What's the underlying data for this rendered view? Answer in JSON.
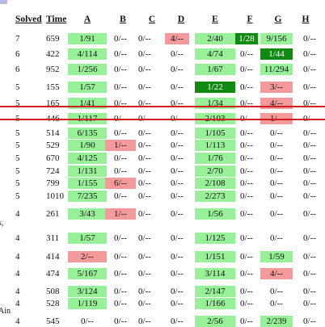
{
  "header": {
    "solved": "Solved",
    "time": "Time",
    "problems": [
      "A",
      "B",
      "C",
      "D",
      "E",
      "F",
      "G",
      "H"
    ]
  },
  "rows": [
    {
      "solved": "7",
      "time": "659",
      "cells": [
        "1/91",
        "0/--",
        "0/--",
        "4/--",
        "2/40",
        "1/28",
        "9/156",
        "0/--"
      ],
      "status": [
        "green",
        "plain",
        "plain",
        "red",
        "green",
        "dark",
        "green",
        "plain"
      ]
    },
    {
      "solved": "6",
      "time": "422",
      "cells": [
        "4/114",
        "0/--",
        "0/--",
        "0/--",
        "4/74",
        "0/--",
        "1/44",
        "0/--"
      ],
      "status": [
        "green",
        "plain",
        "plain",
        "plain",
        "green",
        "plain",
        "dark",
        "plain"
      ]
    },
    {
      "solved": "6",
      "time": "952",
      "cells": [
        "1/256",
        "0/--",
        "0/--",
        "0/--",
        "1/67",
        "0/--",
        "11/294",
        "0/--"
      ],
      "status": [
        "green",
        "plain",
        "plain",
        "plain",
        "green",
        "plain",
        "green",
        "plain"
      ]
    },
    {
      "solved": "5",
      "time": "155",
      "cells": [
        "1/57",
        "0/--",
        "0/--",
        "0/--",
        "1/22",
        "0/--",
        "3/--",
        "0/--"
      ],
      "status": [
        "green",
        "plain",
        "plain",
        "plain",
        "dark",
        "plain",
        "red",
        "plain"
      ]
    },
    {
      "solved": "5",
      "time": "165",
      "cells": [
        "1/41",
        "0/--",
        "0/--",
        "0/--",
        "1/34",
        "0/--",
        "4/--",
        "0/--"
      ],
      "status": [
        "green",
        "plain",
        "plain",
        "plain",
        "green",
        "plain",
        "red",
        "plain"
      ]
    },
    {
      "solved": "5",
      "time": "446",
      "cells": [
        "1/117",
        "0/--",
        "0/--",
        "0/--",
        "2/103",
        "0/--",
        "1/--",
        "0/--"
      ],
      "status": [
        "green",
        "plain",
        "plain",
        "plain",
        "green",
        "plain",
        "red",
        "plain"
      ]
    },
    {
      "solved": "5",
      "time": "514",
      "cells": [
        "6/135",
        "0/--",
        "0/--",
        "0/--",
        "1/105",
        "0/--",
        "0/--",
        "0/--"
      ],
      "status": [
        "green",
        "plain",
        "plain",
        "plain",
        "green",
        "plain",
        "plain",
        "plain"
      ]
    },
    {
      "solved": "5",
      "time": "529",
      "cells": [
        "1/90",
        "1/--",
        "0/--",
        "0/--",
        "1/113",
        "0/--",
        "0/--",
        "0/--"
      ],
      "status": [
        "green",
        "red",
        "plain",
        "plain",
        "green",
        "plain",
        "plain",
        "plain"
      ]
    },
    {
      "solved": "5",
      "time": "670",
      "cells": [
        "4/125",
        "0/--",
        "0/--",
        "0/--",
        "1/76",
        "0/--",
        "0/--",
        "0/--"
      ],
      "status": [
        "green",
        "plain",
        "plain",
        "plain",
        "green",
        "plain",
        "plain",
        "plain"
      ]
    },
    {
      "solved": "5",
      "time": "724",
      "cells": [
        "1/131",
        "0/--",
        "0/--",
        "0/--",
        "2/70",
        "0/--",
        "0/--",
        "0/--"
      ],
      "status": [
        "green",
        "plain",
        "plain",
        "plain",
        "green",
        "plain",
        "plain",
        "plain"
      ]
    },
    {
      "solved": "5",
      "time": "799",
      "cells": [
        "1/155",
        "6/--",
        "0/--",
        "0/--",
        "2/108",
        "0/--",
        "0/--",
        "0/--"
      ],
      "status": [
        "green",
        "red",
        "plain",
        "plain",
        "green",
        "plain",
        "plain",
        "plain"
      ]
    },
    {
      "solved": "5",
      "time": "1010",
      "cells": [
        "7/235",
        "0/--",
        "0/--",
        "0/--",
        "2/273",
        "0/--",
        "0/--",
        "0/--"
      ],
      "status": [
        "green",
        "plain",
        "plain",
        "plain",
        "green",
        "plain",
        "plain",
        "plain"
      ]
    },
    {
      "solved": "4",
      "time": "261",
      "cells": [
        "3/43",
        "1/--",
        "0/--",
        "0/--",
        "1/56",
        "0/--",
        "0/--",
        "0/--"
      ],
      "status": [
        "green",
        "red",
        "plain",
        "plain",
        "green",
        "plain",
        "plain",
        "plain"
      ]
    },
    {
      "solved": "4",
      "time": "311",
      "cells": [
        "1/57",
        "0/--",
        "0/--",
        "0/--",
        "1/125",
        "0/--",
        "0/--",
        "0/--"
      ],
      "status": [
        "green",
        "plain",
        "plain",
        "plain",
        "green",
        "plain",
        "plain",
        "plain"
      ]
    },
    {
      "solved": "4",
      "time": "414",
      "cells": [
        "2/--",
        "0/--",
        "0/--",
        "0/--",
        "1/151",
        "0/--",
        "1/59",
        "0/--"
      ],
      "status": [
        "red",
        "plain",
        "plain",
        "plain",
        "green",
        "plain",
        "green",
        "plain"
      ]
    },
    {
      "solved": "4",
      "time": "474",
      "cells": [
        "5/167",
        "0/--",
        "0/--",
        "0/--",
        "3/114",
        "0/--",
        "4/--",
        "0/--"
      ],
      "status": [
        "green",
        "plain",
        "plain",
        "plain",
        "green",
        "plain",
        "red",
        "plain"
      ]
    },
    {
      "solved": "4",
      "time": "508",
      "cells": [
        "3/124",
        "0/--",
        "0/--",
        "0/--",
        "2/147",
        "0/--",
        "0/--",
        "0/--"
      ],
      "status": [
        "green",
        "plain",
        "plain",
        "plain",
        "green",
        "plain",
        "plain",
        "plain"
      ]
    },
    {
      "solved": "4",
      "time": "528",
      "cells": [
        "1/119",
        "0/--",
        "0/--",
        "0/--",
        "1/166",
        "0/--",
        "0/--",
        "0/--"
      ],
      "status": [
        "green",
        "plain",
        "plain",
        "plain",
        "green",
        "plain",
        "plain",
        "plain"
      ]
    },
    {
      "solved": "4",
      "time": "545",
      "cells": [
        "0/--",
        "0/--",
        "0/--",
        "0/--",
        "2/56",
        "0/--",
        "2/239",
        "0/--"
      ],
      "status": [
        "plain",
        "plain",
        "plain",
        "plain",
        "green",
        "plain",
        "green",
        "plain"
      ]
    }
  ],
  "edge_texts": [
    "s,",
    "Ain"
  ]
}
